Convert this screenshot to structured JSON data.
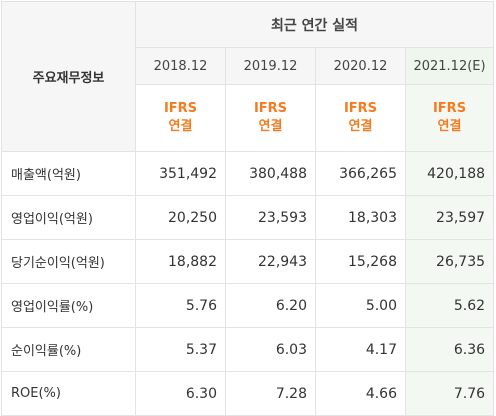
{
  "header": {
    "corner_label": "주요재무정보",
    "group_title": "최근 연간 실적",
    "columns": [
      {
        "period": "2018.12",
        "standard_top": "IFRS",
        "standard_bottom": "연결"
      },
      {
        "period": "2019.12",
        "standard_top": "IFRS",
        "standard_bottom": "연결"
      },
      {
        "period": "2020.12",
        "standard_top": "IFRS",
        "standard_bottom": "연결"
      },
      {
        "period": "2021.12(E)",
        "standard_top": "IFRS",
        "standard_bottom": "연결"
      }
    ]
  },
  "rows": [
    {
      "label": "매출액(억원)",
      "values": [
        "351,492",
        "380,488",
        "366,265",
        "420,188"
      ]
    },
    {
      "label": "영업이익(억원)",
      "values": [
        "20,250",
        "23,593",
        "18,303",
        "23,597"
      ]
    },
    {
      "label": "당기순이익(억원)",
      "values": [
        "18,882",
        "22,943",
        "15,268",
        "26,735"
      ]
    },
    {
      "label": "영업이익률(%)",
      "values": [
        "5.76",
        "6.20",
        "5.00",
        "5.62"
      ]
    },
    {
      "label": "순이익률(%)",
      "values": [
        "5.37",
        "6.03",
        "4.17",
        "6.36"
      ]
    },
    {
      "label": "ROE(%)",
      "values": [
        "6.30",
        "7.28",
        "4.66",
        "7.76"
      ]
    }
  ],
  "colors": {
    "accent": "#f47b20",
    "estimate_bg": "#f3f9f2",
    "header_bg": "#f6f6f6",
    "border": "#e3e3e3"
  }
}
